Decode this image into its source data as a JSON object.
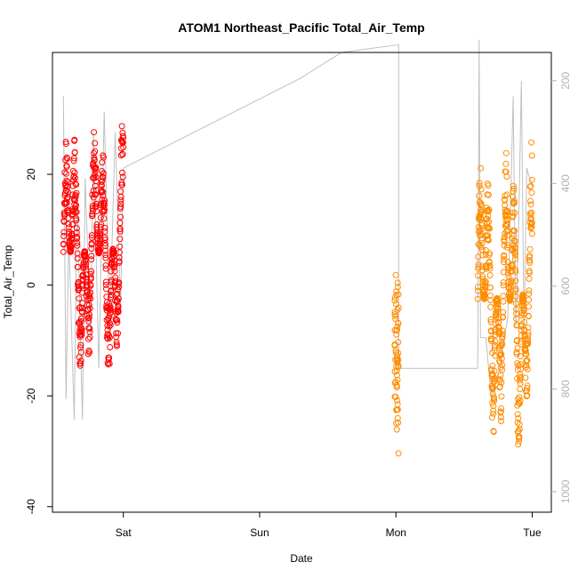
{
  "chart_data": {
    "type": "scatter",
    "title": "ATOM1 Northeast_Pacific Total_Air_Temp",
    "xlabel": "Date",
    "ylabel": "Total_Air_Temp",
    "x_ticks": [
      {
        "label": "Sat",
        "x": 1.0
      },
      {
        "label": "Sun",
        "x": 2.0
      },
      {
        "label": "Mon",
        "x": 3.0
      },
      {
        "label": "Tue",
        "x": 4.0
      }
    ],
    "xlim": [
      0.48,
      4.14
    ],
    "ylim": [
      -41.0,
      42.0
    ],
    "y_ticks": [
      -40,
      -20,
      0,
      20
    ],
    "right_axis": {
      "ticks": [
        200,
        400,
        600,
        800,
        1000
      ],
      "lim": [
        1040,
        145
      ],
      "color": "#b3b3b3"
    },
    "grid": false,
    "series": [
      {
        "color": "#ff0000",
        "marker": "open-circle",
        "segments": [
          {
            "x_start": 0.56,
            "x_end": 1.0,
            "y_range": [
              -25,
              37
            ],
            "density": "dense"
          }
        ]
      },
      {
        "color": "#ff8c00",
        "marker": "open-circle",
        "segments": [
          {
            "x_start": 2.99,
            "x_end": 3.02,
            "y_range": [
              -39,
              12
            ],
            "density": "vertical"
          },
          {
            "x_start": 3.6,
            "x_end": 4.0,
            "y_range": [
              -38,
              33
            ],
            "density": "dense"
          }
        ]
      }
    ],
    "secondary_line": {
      "color": "#c0c0c0",
      "points": [
        [
          0.56,
          230
        ],
        [
          0.58,
          820
        ],
        [
          0.6,
          500
        ],
        [
          0.64,
          860
        ],
        [
          0.66,
          420
        ],
        [
          0.7,
          860
        ],
        [
          0.72,
          390
        ],
        [
          0.76,
          700
        ],
        [
          0.78,
          300
        ],
        [
          0.82,
          760
        ],
        [
          0.86,
          260
        ],
        [
          0.9,
          680
        ],
        [
          0.94,
          300
        ],
        [
          0.98,
          640
        ],
        [
          1.0,
          370
        ],
        [
          2.3,
          195
        ],
        [
          2.6,
          145
        ],
        [
          3.02,
          130
        ],
        [
          3.02,
          300
        ],
        [
          3.02,
          760
        ],
        [
          3.6,
          760
        ],
        [
          3.61,
          120
        ],
        [
          3.62,
          700
        ],
        [
          3.66,
          700
        ],
        [
          3.7,
          820
        ],
        [
          3.76,
          760
        ],
        [
          3.82,
          660
        ],
        [
          3.86,
          230
        ],
        [
          3.88,
          680
        ],
        [
          3.9,
          490
        ],
        [
          3.92,
          200
        ],
        [
          3.94,
          690
        ],
        [
          3.96,
          370
        ],
        [
          3.98,
          390
        ],
        [
          4.0,
          400
        ]
      ]
    }
  }
}
